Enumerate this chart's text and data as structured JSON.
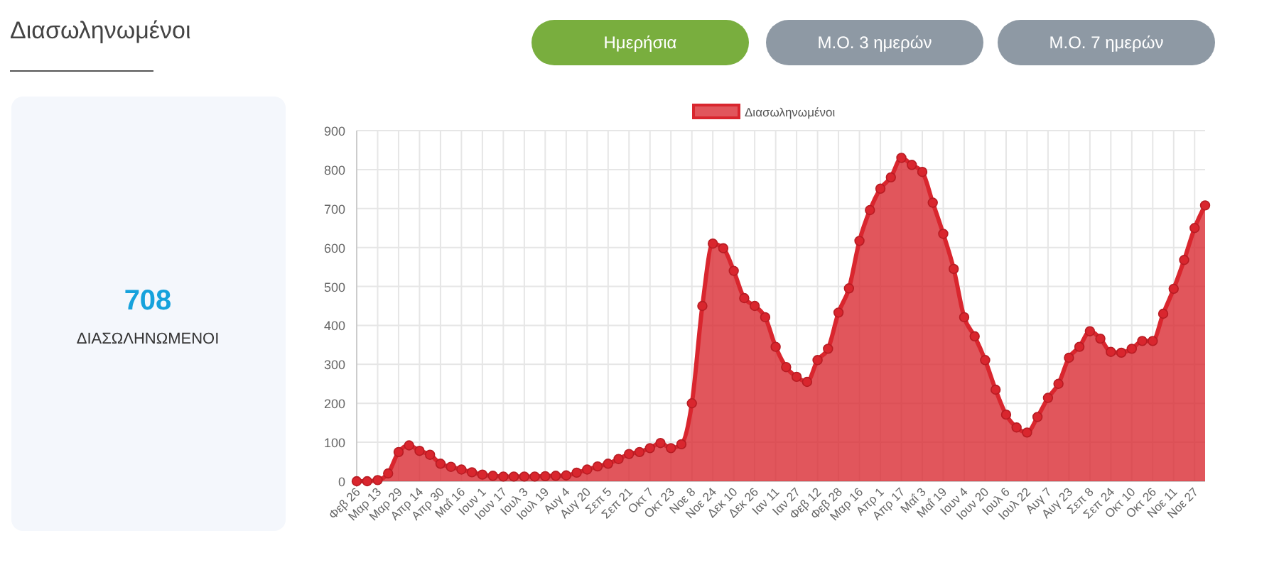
{
  "chart_data": {
    "type": "area",
    "title": "Διασωληνωμένοι",
    "annotations": [
      "Ημερήσια",
      "Μ.Ο. 3 ημερών",
      "Μ.Ο. 7 ημερών",
      "708",
      "ΔΙΑΣΩΛΗΝΩΜΕΝΟΙ"
    ],
    "categories": [
      "Φεβ 26",
      null,
      "Μαρ 13",
      null,
      "Μαρ 29",
      null,
      "Απρ 14",
      null,
      "Απρ 30",
      null,
      "Μαΐ 16",
      null,
      "Ιουν 1",
      null,
      "Ιουν 17",
      null,
      "Ιουλ 3",
      null,
      "Ιουλ 19",
      null,
      "Αυγ 4",
      null,
      "Αυγ 20",
      null,
      "Σεπ 5",
      null,
      "Σεπ 21",
      null,
      "Οκτ 7",
      null,
      "Οκτ 23",
      null,
      "Νοε 8",
      null,
      "Νοε 24",
      null,
      "Δεκ 10",
      null,
      "Δεκ 26",
      null,
      "Ιαν 11",
      null,
      "Ιαν 27",
      null,
      "Φεβ 12",
      null,
      "Φεβ 28",
      null,
      "Μαρ 16",
      null,
      "Απρ 1",
      null,
      "Απρ 17",
      null,
      "Μαΐ 3",
      null,
      "Μαΐ 19",
      null,
      "Ιουν 4",
      null,
      "Ιουν 20",
      null,
      "Ιουλ 6",
      null,
      "Ιουλ 22",
      null,
      "Αυγ 7",
      null,
      "Αυγ 23",
      null,
      "Σεπ 8",
      null,
      "Σεπ 24",
      null,
      "Οκτ 10",
      null,
      "Οκτ 26",
      null,
      "Νοε 11",
      null,
      "Νοε 27",
      null
    ],
    "series": [
      {
        "name": "Διασωληνωμένοι",
        "color": "#d9262e",
        "values": [
          0,
          0,
          3,
          20,
          75,
          92,
          78,
          68,
          45,
          37,
          30,
          23,
          17,
          14,
          12,
          12,
          12,
          12,
          13,
          14,
          15,
          22,
          30,
          38,
          45,
          57,
          70,
          75,
          85,
          98,
          85,
          95,
          200,
          450,
          610,
          598,
          540,
          470,
          450,
          421,
          345,
          293,
          268,
          255,
          311,
          340,
          433,
          495,
          617,
          696,
          751,
          780,
          830,
          812,
          794,
          715,
          635,
          545,
          421,
          372,
          311,
          235,
          171,
          138,
          125,
          165,
          214,
          250,
          317,
          345,
          385,
          366,
          332,
          330,
          340,
          360,
          360,
          430,
          494,
          568,
          650,
          708
        ]
      }
    ],
    "ylim": [
      0,
      900
    ],
    "yticks": [
      0,
      100,
      200,
      300,
      400,
      500,
      600,
      700,
      800,
      900
    ],
    "grid": true,
    "legend": "top",
    "marker": "circle"
  }
}
